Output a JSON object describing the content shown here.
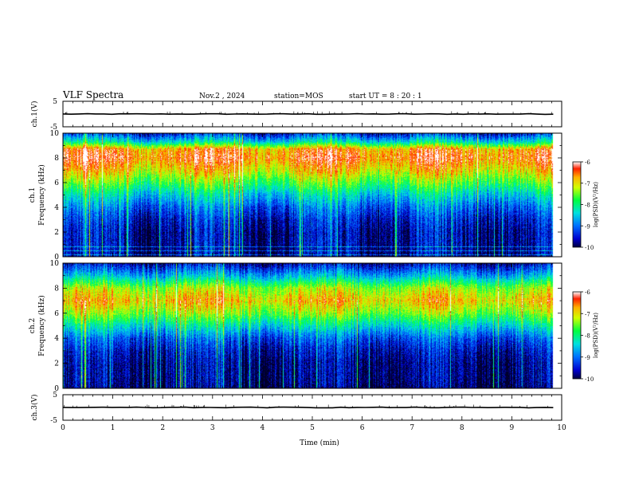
{
  "header": {
    "title": "VLF Spectra",
    "date": "Nov.2  , 2024",
    "station": "station=MOS",
    "start": "start  UT  =   8  : 20 : 1"
  },
  "chart_data": [
    {
      "type": "line",
      "panel": "ch.1 (V)",
      "ylabel": "ch.1(V)",
      "ylim": [
        -5,
        5
      ],
      "yticks": [
        "5",
        "-5"
      ],
      "xlim": [
        0,
        10
      ],
      "x": [
        0,
        9.83
      ],
      "y": [
        0,
        0
      ]
    },
    {
      "type": "heatmap",
      "panel": "ch.1 spectrogram",
      "ylabel": "ch.1\nFrequency (kHz)",
      "ylim": [
        0,
        10
      ],
      "yticks": [
        "0",
        "2",
        "4",
        "6",
        "8",
        "10"
      ],
      "xlim": [
        0,
        10
      ],
      "data_end_min": 9.83,
      "colorbar": {
        "label": "log(PSD)(V²/Hz)",
        "range": [
          -10,
          -6
        ],
        "ticks": [
          "-6",
          "-7",
          "-8",
          "-9",
          "-10"
        ]
      },
      "freq_profile_khz": [
        0,
        1,
        2,
        3,
        4,
        5,
        6,
        7,
        8,
        8.7,
        9.3,
        10
      ],
      "log_psd_profile": [
        -9.7,
        -9.6,
        -9.6,
        -9.4,
        -9.0,
        -8.4,
        -7.6,
        -6.9,
        -6.4,
        -6.6,
        -8.3,
        -9.4
      ]
    },
    {
      "type": "heatmap",
      "panel": "ch.2 spectrogram",
      "ylabel": "ch.2\nFrequency (kHz)",
      "ylim": [
        0,
        10
      ],
      "yticks": [
        "0",
        "2",
        "4",
        "6",
        "8",
        "10"
      ],
      "xlim": [
        0,
        10
      ],
      "data_end_min": 9.83,
      "colorbar": {
        "label": "log(PSD)(V²/Hz)",
        "range": [
          -10,
          -6
        ],
        "ticks": [
          "-6",
          "-7",
          "-8",
          "-9",
          "-10"
        ]
      },
      "freq_profile_khz": [
        0,
        1,
        2,
        3,
        4,
        5,
        6,
        7,
        8,
        9,
        10
      ],
      "log_psd_profile": [
        -9.8,
        -9.7,
        -9.7,
        -9.5,
        -9.1,
        -8.3,
        -7.4,
        -6.8,
        -7.3,
        -8.6,
        -9.6
      ]
    },
    {
      "type": "line",
      "panel": "ch.3 (V)",
      "ylabel": "ch.3(V)",
      "ylim": [
        -5,
        5
      ],
      "yticks": [
        "5",
        "-5"
      ],
      "xlim": [
        0,
        10
      ],
      "x": [
        0,
        9.83
      ],
      "y": [
        0,
        0
      ]
    }
  ],
  "xaxis": {
    "label": "Time  (min)",
    "ticks": [
      "0",
      "1",
      "2",
      "3",
      "4",
      "5",
      "6",
      "7",
      "8",
      "9",
      "10"
    ]
  }
}
